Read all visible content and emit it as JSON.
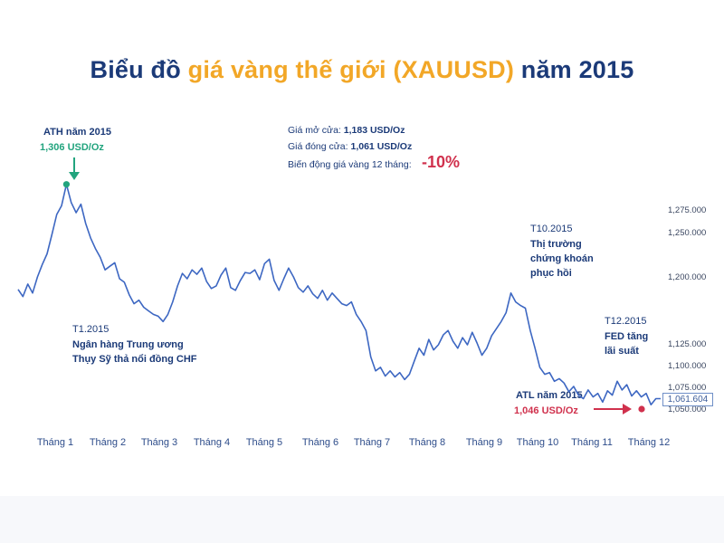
{
  "title": {
    "part1": "Biểu đồ ",
    "part2": "giá vàng thế giới (XAUUSD)",
    "part3": " năm 2015"
  },
  "colors": {
    "title_dark": "#1b3a78",
    "title_gold": "#f2a727",
    "line": "#3d67c2",
    "ath_marker": "#22a47e",
    "atl_marker": "#d0314d",
    "change_text": "#d0314d"
  },
  "stats": {
    "open_label": "Giá mở cửa: ",
    "open_value": "1,183 USD/Oz",
    "close_label": "Giá đóng cửa: ",
    "close_value": "1,061 USD/Oz",
    "change_label": "Biến động giá vàng 12 tháng: ",
    "change_value": "-10%"
  },
  "annotations": {
    "ath_title": "ATH năm 2015",
    "ath_value": "1,306 USD/Oz",
    "atl_title": "ATL năm 2015",
    "atl_value": "1,046 USD/Oz",
    "t1_date": "T1.2015",
    "t1_line1": "Ngân hàng Trung ương",
    "t1_line2": "Thụy Sỹ thả nổi đồng CHF",
    "t10_date": "T10.2015",
    "t10_line1": "Thị trường",
    "t10_line2": "chứng khoán",
    "t10_line3": "phục hồi",
    "t12_date": "T12.2015",
    "t12_line1": "FED tăng",
    "t12_line2": "lãi suất"
  },
  "last_price_label": "1,061.604",
  "chart_data": {
    "type": "line",
    "title": "Biểu đồ giá vàng thế giới (XAUUSD) năm 2015",
    "y_tick_labels": [
      "1,275.000",
      "1,250.000",
      "1,200.000",
      "1,125.000",
      "1,100.000",
      "1,075.000",
      "1,050.000"
    ],
    "y_tick_values": [
      1275,
      1250,
      1200,
      1125,
      1100,
      1075,
      1050
    ],
    "x_tick_labels": [
      "Tháng 1",
      "Tháng 2",
      "Tháng 3",
      "Tháng 4",
      "Tháng 5",
      "Tháng 6",
      "Tháng 7",
      "Tháng 8",
      "Tháng 9",
      "Tháng 10",
      "Tháng 11",
      "Tháng 12"
    ],
    "series": [
      {
        "values": [
          1186,
          1178,
          1192,
          1182,
          1200,
          1214,
          1226,
          1248,
          1270,
          1280,
          1306,
          1284,
          1272,
          1282,
          1260,
          1244,
          1232,
          1222,
          1208,
          1212,
          1216,
          1198,
          1194,
          1180,
          1170,
          1174,
          1166,
          1162,
          1158,
          1156,
          1150,
          1158,
          1172,
          1190,
          1204,
          1198,
          1208,
          1203,
          1210,
          1195,
          1187,
          1190,
          1202,
          1210,
          1188,
          1185,
          1196,
          1205,
          1204,
          1208,
          1197,
          1215,
          1220,
          1196,
          1185,
          1198,
          1210,
          1200,
          1188,
          1183,
          1190,
          1181,
          1176,
          1185,
          1174,
          1182,
          1176,
          1170,
          1168,
          1172,
          1158,
          1150,
          1140,
          1110,
          1094,
          1098,
          1088,
          1094,
          1087,
          1092,
          1084,
          1090,
          1105,
          1120,
          1112,
          1130,
          1118,
          1124,
          1135,
          1140,
          1128,
          1120,
          1132,
          1124,
          1138,
          1126,
          1112,
          1120,
          1134,
          1142,
          1150,
          1160,
          1182,
          1172,
          1168,
          1165,
          1140,
          1120,
          1098,
          1090,
          1092,
          1082,
          1085,
          1080,
          1070,
          1076,
          1066,
          1062,
          1072,
          1064,
          1068,
          1058,
          1071,
          1066,
          1082,
          1072,
          1078,
          1065,
          1071,
          1064,
          1068,
          1055,
          1062,
          1062
        ]
      }
    ],
    "ylim": [
      1040,
      1310
    ]
  }
}
